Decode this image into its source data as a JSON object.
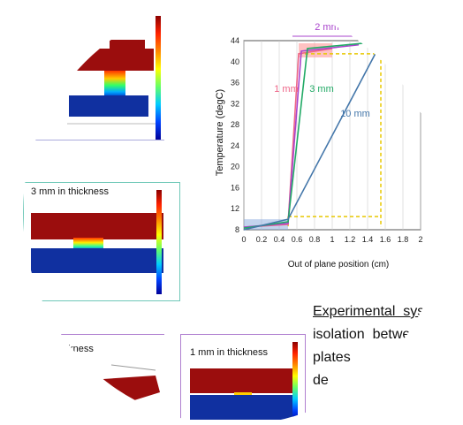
{
  "panels": {
    "top_left": {
      "label": ""
    },
    "middle_left": {
      "label": "3 mm in thickness"
    },
    "bottom_left": {
      "label": "thickness"
    },
    "bottom_center": {
      "label": "1 mm in thickness"
    }
  },
  "chart_data": {
    "type": "line",
    "title": "",
    "xlabel": "Out of plane position (cm)",
    "ylabel": "Temperature (degC)",
    "xlim": [
      0,
      2
    ],
    "ylim": [
      8,
      44
    ],
    "xticks": [
      "0",
      "0.2",
      "0.4",
      "0.6",
      "0.8",
      "1",
      "1.2",
      "1.4",
      "1.6",
      "1.8",
      "2"
    ],
    "yticks": [
      "8",
      "12",
      "16",
      "20",
      "24",
      "28",
      "32",
      "36",
      "40",
      "44"
    ],
    "grid": true,
    "series": [
      {
        "name": "1 mm",
        "color": "#ee6688",
        "x": [
          0,
          0.5,
          0.62,
          1.0
        ],
        "y": [
          8.5,
          9,
          41.5,
          42.5
        ]
      },
      {
        "name": "2 mm",
        "color": "#aa44cc",
        "x": [
          0,
          0.5,
          0.65,
          1.3
        ],
        "y": [
          8.5,
          9.2,
          42,
          43.2
        ]
      },
      {
        "name": "3 mm",
        "color": "#22aa66",
        "x": [
          0,
          0.5,
          0.72,
          1.35
        ],
        "y": [
          8.3,
          9.5,
          42.5,
          43.5
        ]
      },
      {
        "name": "10 mm",
        "color": "#4477aa",
        "x": [
          0,
          0.5,
          1.55,
          1.62
        ],
        "y": [
          8.0,
          10,
          43.5,
          43.2
        ]
      }
    ],
    "annotations": [
      "1 mm",
      "2 mm",
      "3 mm",
      "10 mm"
    ],
    "guide_color": "#e8c800",
    "highlight_color": "#ff9999"
  },
  "text": {
    "line1": "Experimental  syst",
    "line2": "isolation  betwe",
    "line3": "plates",
    "line4": "de"
  }
}
